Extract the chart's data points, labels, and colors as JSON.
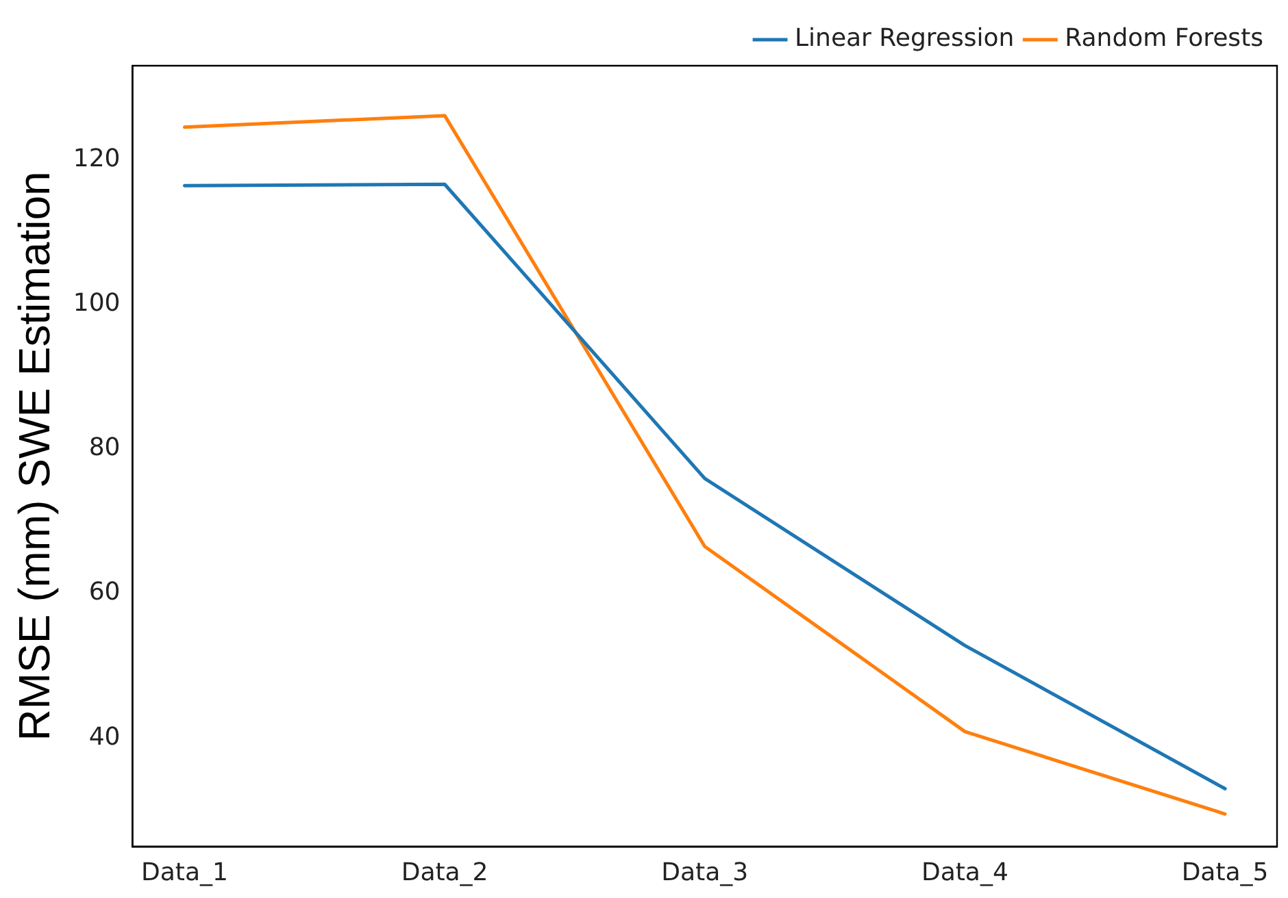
{
  "chart_data": {
    "type": "line",
    "ylabel": "RMSE (mm) SWE Estimation",
    "categories": [
      "Data_1",
      "Data_2",
      "Data_3",
      "Data_4",
      "Data_5"
    ],
    "series": [
      {
        "name": "Linear Regression",
        "color": "#1f77b4",
        "values": [
          116.4,
          116.6,
          75.9,
          52.8,
          33.0
        ]
      },
      {
        "name": "Random Forests",
        "color": "#ff7f0e",
        "values": [
          124.5,
          126.1,
          66.5,
          40.9,
          29.5
        ]
      }
    ],
    "ylim": [
      25,
      133
    ],
    "yticks": [
      40,
      60,
      80,
      100,
      120
    ],
    "grid": false,
    "legend": "top right",
    "marker": "none",
    "line_style": "solid"
  }
}
